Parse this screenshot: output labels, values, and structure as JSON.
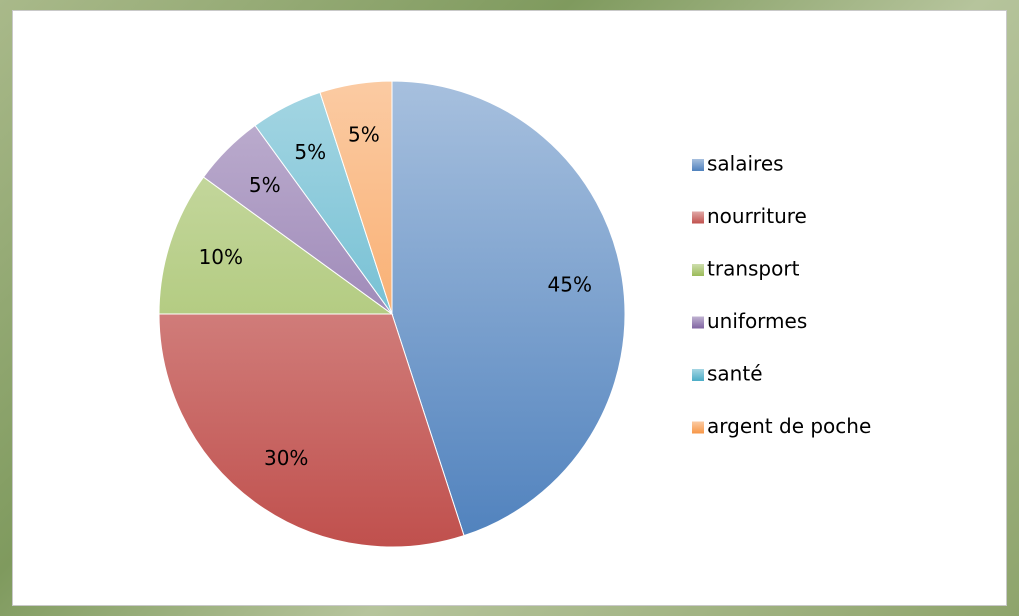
{
  "chart_data": {
    "type": "pie",
    "categories": [
      "salaires",
      "nourriture",
      "transport",
      "uniformes",
      "santé",
      "argent de poche"
    ],
    "values": [
      45,
      30,
      10,
      5,
      5,
      5
    ],
    "value_labels": [
      "45%",
      "30%",
      "10%",
      "5%",
      "5%",
      "5%"
    ],
    "colors": [
      "#4f81bd",
      "#c0504d",
      "#9bbb59",
      "#8064a2",
      "#4bacc6",
      "#f79646"
    ],
    "legend": "right"
  }
}
